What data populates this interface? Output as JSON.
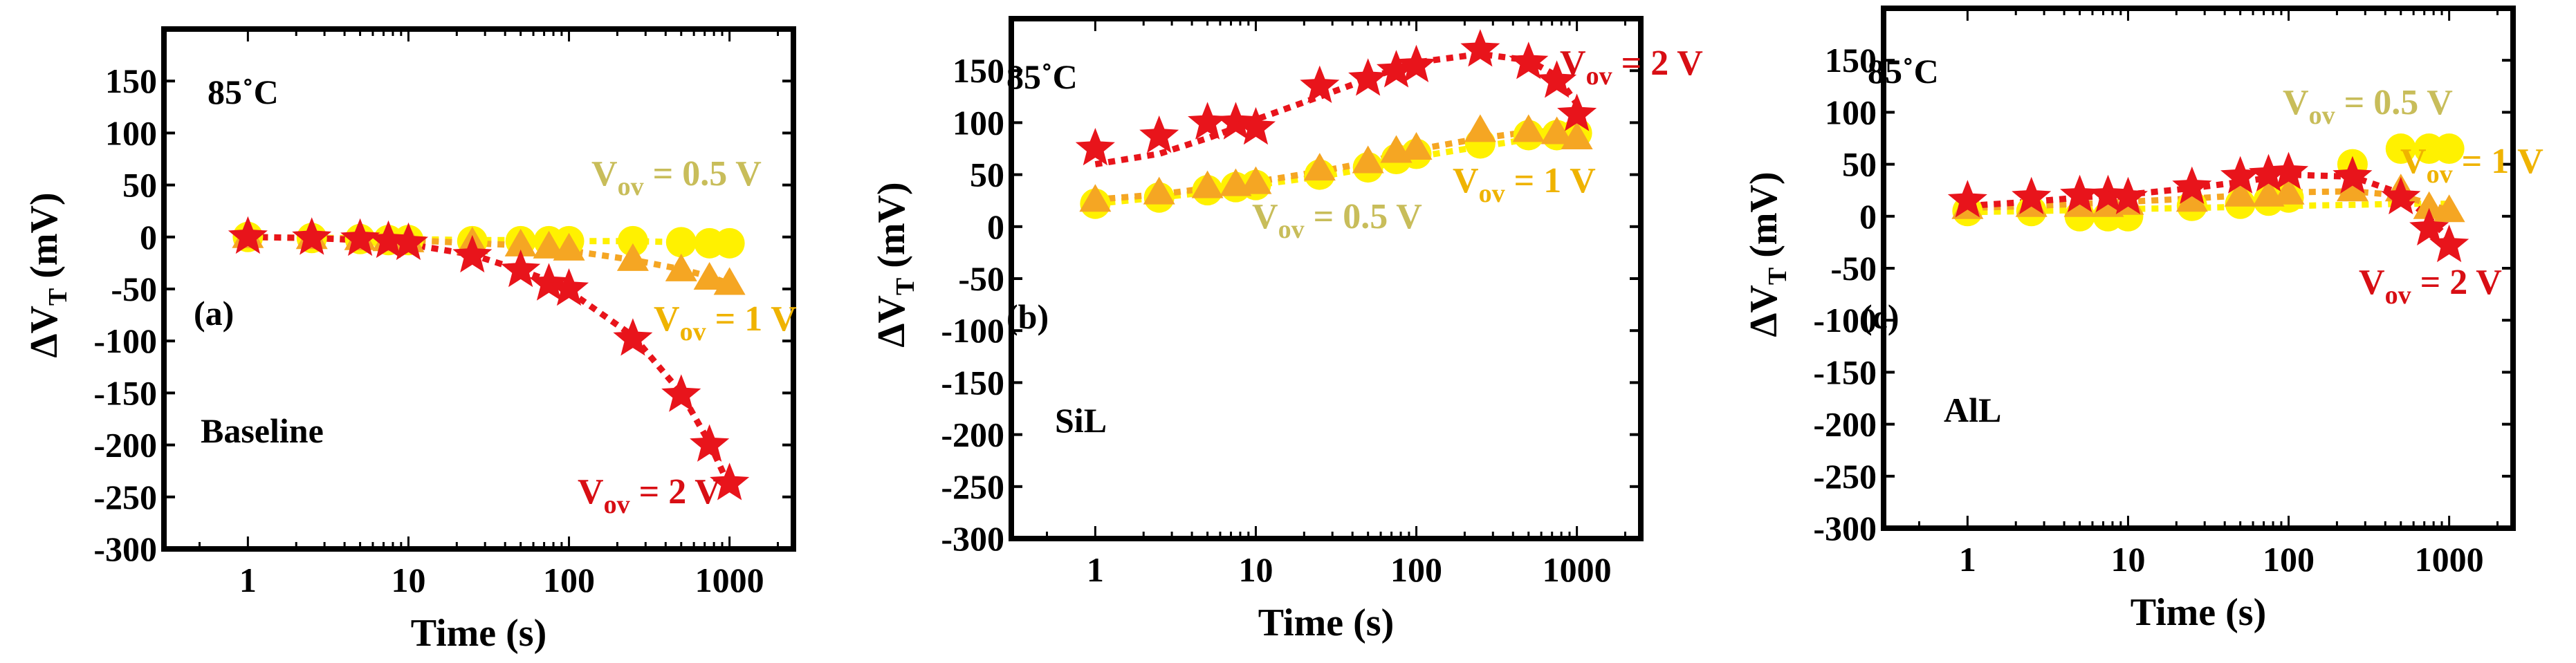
{
  "figure": {
    "colors": {
      "v05": "#FFF100",
      "v05_label": "#C8BD5A",
      "v1": "#F5A623",
      "v1_label": "#EFB300",
      "v2": "#E8141B",
      "v2_label": "#D80E14",
      "frame": "#000000"
    }
  },
  "chart_data": [
    {
      "type": "scatter",
      "panel_label": "(a)",
      "temperature": "85˚C",
      "device": "Baseline",
      "xlabel": "Time (s)",
      "ylabel_main": "ΔV",
      "ylabel_sub": "T",
      "ylabel_unit": " (mV)",
      "xscale": "log",
      "xlim": [
        0.3,
        2500
      ],
      "ylim": [
        -300,
        200
      ],
      "x_ticks": [
        1,
        10,
        100,
        1000
      ],
      "x_tick_labels": [
        "1",
        "10",
        "100",
        "1000"
      ],
      "y_ticks": [
        -300,
        -250,
        -200,
        -150,
        -100,
        -50,
        0,
        50,
        100,
        150
      ],
      "y_tick_labels": [
        "-300",
        "-250",
        "-200",
        "-150",
        "-100",
        "-50",
        "0",
        "50",
        "100",
        "150"
      ],
      "x": [
        1,
        2.5,
        5,
        7.5,
        10,
        25,
        50,
        75,
        100,
        250,
        500,
        750,
        1000
      ],
      "series": [
        {
          "name": "Vov = 0.5 V",
          "label_main": "V",
          "label_sub": "ov",
          "label_rest": " = 0.5 V",
          "marker": "circle",
          "color_key": "v05",
          "values": [
            0,
            -1,
            -2,
            -3,
            -3,
            -4,
            -4,
            -4,
            -4,
            -4,
            -5,
            -6,
            -6
          ],
          "fit": [
            0,
            -1,
            -1,
            -2,
            -2,
            -3,
            -3,
            -4,
            -4,
            -4,
            -5,
            -5,
            -6
          ]
        },
        {
          "name": "Vov = 1 V",
          "label_main": "V",
          "label_sub": "ov",
          "label_rest": " = 1 V",
          "marker": "triangle",
          "color_key": "v1",
          "values": [
            0,
            -1,
            -2,
            -3,
            -4,
            -6,
            -8,
            -10,
            -12,
            -22,
            -32,
            -40,
            -45
          ],
          "fit": [
            0,
            -1,
            -2,
            -3,
            -3,
            -6,
            -8,
            -11,
            -13,
            -22,
            -31,
            -38,
            -45
          ]
        },
        {
          "name": "Vov = 2 V",
          "label_main": "V",
          "label_sub": "ov",
          "label_rest": " = 2 V",
          "marker": "star",
          "color_key": "v2",
          "values": [
            0,
            -1,
            -2,
            -4,
            -6,
            -18,
            -32,
            -45,
            -50,
            -98,
            -152,
            -200,
            -237
          ],
          "fit": [
            0,
            -1,
            -3,
            -5,
            -7,
            -17,
            -32,
            -42,
            -52,
            -95,
            -150,
            -198,
            -240
          ]
        }
      ]
    },
    {
      "type": "scatter",
      "panel_label": "(b)",
      "temperature": "85˚C",
      "device": "SiL",
      "xlabel": "Time (s)",
      "ylabel_main": "ΔV",
      "ylabel_sub": "T",
      "ylabel_unit": " (mV)",
      "xscale": "log",
      "xlim": [
        0.3,
        2500
      ],
      "ylim": [
        -300,
        200
      ],
      "x_ticks": [
        1,
        10,
        100,
        1000
      ],
      "x_tick_labels": [
        "1",
        "10",
        "100",
        "1000"
      ],
      "y_ticks": [
        -300,
        -250,
        -200,
        -150,
        -100,
        -50,
        0,
        50,
        100,
        150
      ],
      "y_tick_labels": [
        "-300",
        "-250",
        "-200",
        "-150",
        "-100",
        "-50",
        "0",
        "50",
        "100",
        "150"
      ],
      "x": [
        1,
        2.5,
        5,
        7.5,
        10,
        25,
        50,
        75,
        100,
        250,
        500,
        750,
        1000
      ],
      "series": [
        {
          "name": "Vov = 0.5 V",
          "label_main": "V",
          "label_sub": "ov",
          "label_rest": " = 0.5 V",
          "marker": "circle",
          "color_key": "v05",
          "values": [
            22,
            28,
            35,
            38,
            40,
            50,
            57,
            65,
            70,
            80,
            88,
            88,
            90
          ],
          "fit": [
            22,
            28,
            33,
            37,
            40,
            48,
            56,
            62,
            67,
            77,
            84,
            88,
            90
          ]
        },
        {
          "name": "Vov = 1 V",
          "label_main": "V",
          "label_sub": "ov",
          "label_rest": " = 1 V",
          "marker": "triangle",
          "color_key": "v1",
          "values": [
            25,
            32,
            38,
            40,
            42,
            55,
            62,
            72,
            75,
            92,
            92,
            90,
            85
          ],
          "fit": [
            26,
            31,
            37,
            40,
            43,
            53,
            62,
            69,
            74,
            85,
            91,
            92,
            93
          ]
        },
        {
          "name": "Vov = 2 V",
          "label_main": "V",
          "label_sub": "ov",
          "label_rest": " = 2 V",
          "marker": "star",
          "color_key": "v2",
          "values": [
            75,
            87,
            100,
            100,
            95,
            135,
            142,
            150,
            155,
            170,
            158,
            140,
            108
          ],
          "fit": [
            60,
            70,
            85,
            95,
            103,
            125,
            142,
            152,
            158,
            166,
            160,
            145,
            118
          ]
        }
      ]
    },
    {
      "type": "scatter",
      "panel_label": "(c)",
      "temperature": "85˚C",
      "device": "AlL",
      "xlabel": "Time (s)",
      "ylabel_main": "ΔV",
      "ylabel_sub": "T",
      "ylabel_unit": " (mV)",
      "xscale": "log",
      "xlim": [
        0.3,
        2500
      ],
      "ylim": [
        -300,
        200
      ],
      "x_ticks": [
        1,
        10,
        100,
        1000
      ],
      "x_tick_labels": [
        "1",
        "10",
        "100",
        "1000"
      ],
      "y_ticks": [
        -300,
        -250,
        -200,
        -150,
        -100,
        -50,
        0,
        50,
        100,
        150
      ],
      "y_tick_labels": [
        "-300",
        "-250",
        "-200",
        "-150",
        "-100",
        "-50",
        "0",
        "50",
        "100",
        "150"
      ],
      "x": [
        1,
        2.5,
        5,
        7.5,
        10,
        25,
        50,
        75,
        100,
        250,
        500,
        750,
        1000
      ],
      "series": [
        {
          "name": "Vov = 0.5 V",
          "label_main": "V",
          "label_sub": "ov",
          "label_rest": " = 0.5 V",
          "marker": "circle",
          "color_key": "v05",
          "values": [
            5,
            5,
            0,
            0,
            0,
            10,
            12,
            15,
            18,
            50,
            65,
            65,
            65
          ],
          "fit": [
            4,
            5,
            6,
            6,
            7,
            8,
            9,
            10,
            10,
            11,
            12,
            12,
            12
          ]
        },
        {
          "name": "Vov = 1 V",
          "label_main": "V",
          "label_sub": "ov",
          "label_rest": " = 1 V",
          "marker": "triangle",
          "color_key": "v1",
          "values": [
            8,
            10,
            10,
            10,
            12,
            15,
            20,
            20,
            22,
            25,
            25,
            8,
            5
          ],
          "fit": [
            8,
            10,
            12,
            13,
            14,
            17,
            20,
            22,
            23,
            24,
            20,
            12,
            5
          ]
        },
        {
          "name": "Vov = 2 V",
          "label_main": "V",
          "label_sub": "ov",
          "label_rest": " = 2 V",
          "marker": "star",
          "color_key": "v2",
          "values": [
            15,
            18,
            20,
            20,
            18,
            28,
            38,
            40,
            42,
            38,
            18,
            -12,
            -28
          ],
          "fit": [
            10,
            14,
            18,
            20,
            21,
            27,
            33,
            37,
            40,
            38,
            22,
            -2,
            -22
          ]
        }
      ]
    }
  ]
}
